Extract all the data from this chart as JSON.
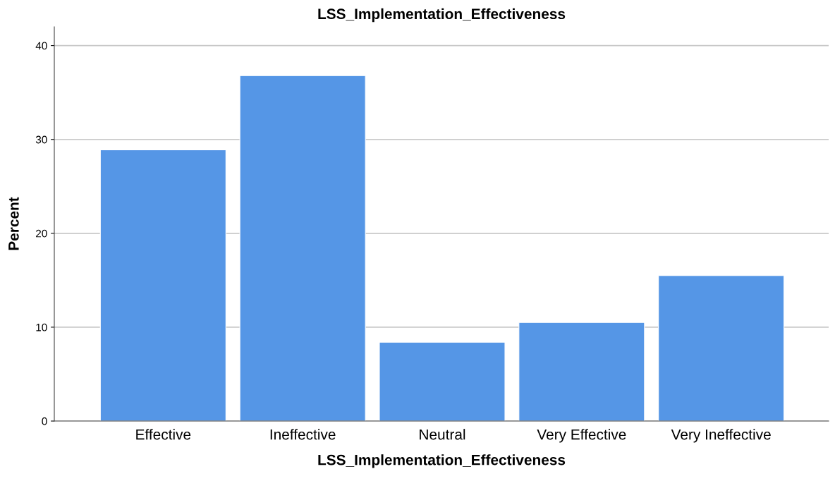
{
  "chart_data": {
    "type": "bar",
    "title": "LSS_Implementation_Effectiveness",
    "xlabel": "LSS_Implementation_Effectiveness",
    "ylabel": "Percent",
    "categories": [
      "Effective",
      "Ineffective",
      "Neutral",
      "Very Effective",
      "Very Ineffective"
    ],
    "values": [
      28.9,
      36.8,
      8.4,
      10.5,
      15.5
    ],
    "color": "#5596e6",
    "ylim": [
      0,
      42
    ],
    "yticks": [
      0,
      10,
      20,
      30,
      40
    ],
    "grid": "y"
  }
}
